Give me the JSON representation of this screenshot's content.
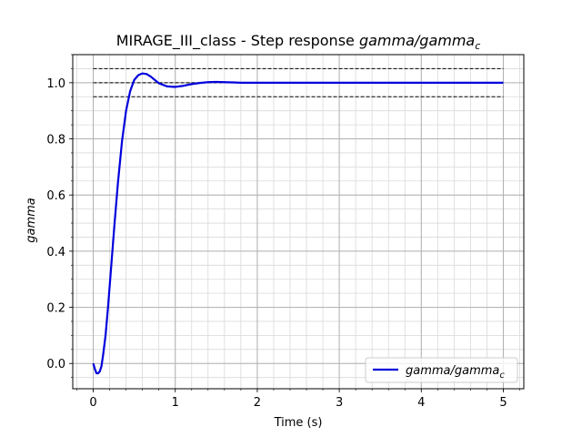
{
  "chart_data": {
    "type": "line",
    "title": "MIRAGE_III_class - Step response ",
    "title_math": "gamma/gamma",
    "title_math_sub": "c",
    "xlabel": "Time (s)",
    "ylabel": "gamma",
    "xlim": [
      -0.25,
      5.25
    ],
    "ylim": [
      -0.09,
      1.1
    ],
    "x_ticks": [
      0,
      1,
      2,
      3,
      4,
      5
    ],
    "x_tick_labels": [
      "0",
      "1",
      "2",
      "3",
      "4",
      "5"
    ],
    "y_ticks": [
      0.0,
      0.2,
      0.4,
      0.6,
      0.8,
      1.0
    ],
    "y_tick_labels": [
      "0.0",
      "0.2",
      "0.4",
      "0.6",
      "0.8",
      "1.0"
    ],
    "grid": true,
    "minor_grid": true,
    "legend_position": "lower-right",
    "series": [
      {
        "name": "gamma/gamma",
        "name_sub": "c",
        "color": "#0000dd",
        "x": [
          0.0,
          0.02,
          0.04,
          0.06,
          0.08,
          0.1,
          0.12,
          0.15,
          0.18,
          0.22,
          0.26,
          0.3,
          0.35,
          0.4,
          0.45,
          0.5,
          0.55,
          0.6,
          0.65,
          0.7,
          0.75,
          0.8,
          0.9,
          1.0,
          1.1,
          1.2,
          1.3,
          1.4,
          1.5,
          1.6,
          1.7,
          1.8,
          1.9,
          2.0,
          2.5,
          3.0,
          3.5,
          4.0,
          4.5,
          5.0
        ],
        "values": [
          0.0,
          -0.02,
          -0.035,
          -0.035,
          -0.028,
          -0.01,
          0.03,
          0.1,
          0.2,
          0.35,
          0.5,
          0.64,
          0.79,
          0.9,
          0.97,
          1.01,
          1.027,
          1.033,
          1.031,
          1.022,
          1.01,
          0.998,
          0.987,
          0.985,
          0.989,
          0.995,
          0.999,
          1.002,
          1.003,
          1.002,
          1.001,
          1.0,
          1.0,
          1.0,
          1.0,
          1.0,
          1.0,
          1.0,
          1.0,
          1.0
        ]
      },
      {
        "name": "",
        "color": "#000000",
        "style": "dashed",
        "x": [
          0,
          5
        ],
        "values": [
          1.05,
          1.05
        ]
      },
      {
        "name": "",
        "color": "#000000",
        "style": "dashed",
        "x": [
          0,
          5
        ],
        "values": [
          1.0,
          1.0
        ]
      },
      {
        "name": "",
        "color": "#000000",
        "style": "dashed",
        "x": [
          0,
          5
        ],
        "values": [
          0.95,
          0.95
        ]
      }
    ]
  }
}
